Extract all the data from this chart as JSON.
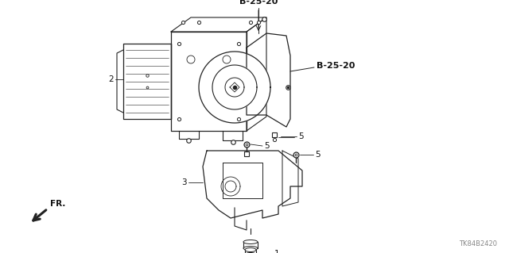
{
  "bg_color": "#ffffff",
  "part_code_top": "B-25-20",
  "part_code_right": "B-25-20",
  "footnote": "TK84B2420",
  "line_color": "#222222",
  "label_color": "#111111"
}
